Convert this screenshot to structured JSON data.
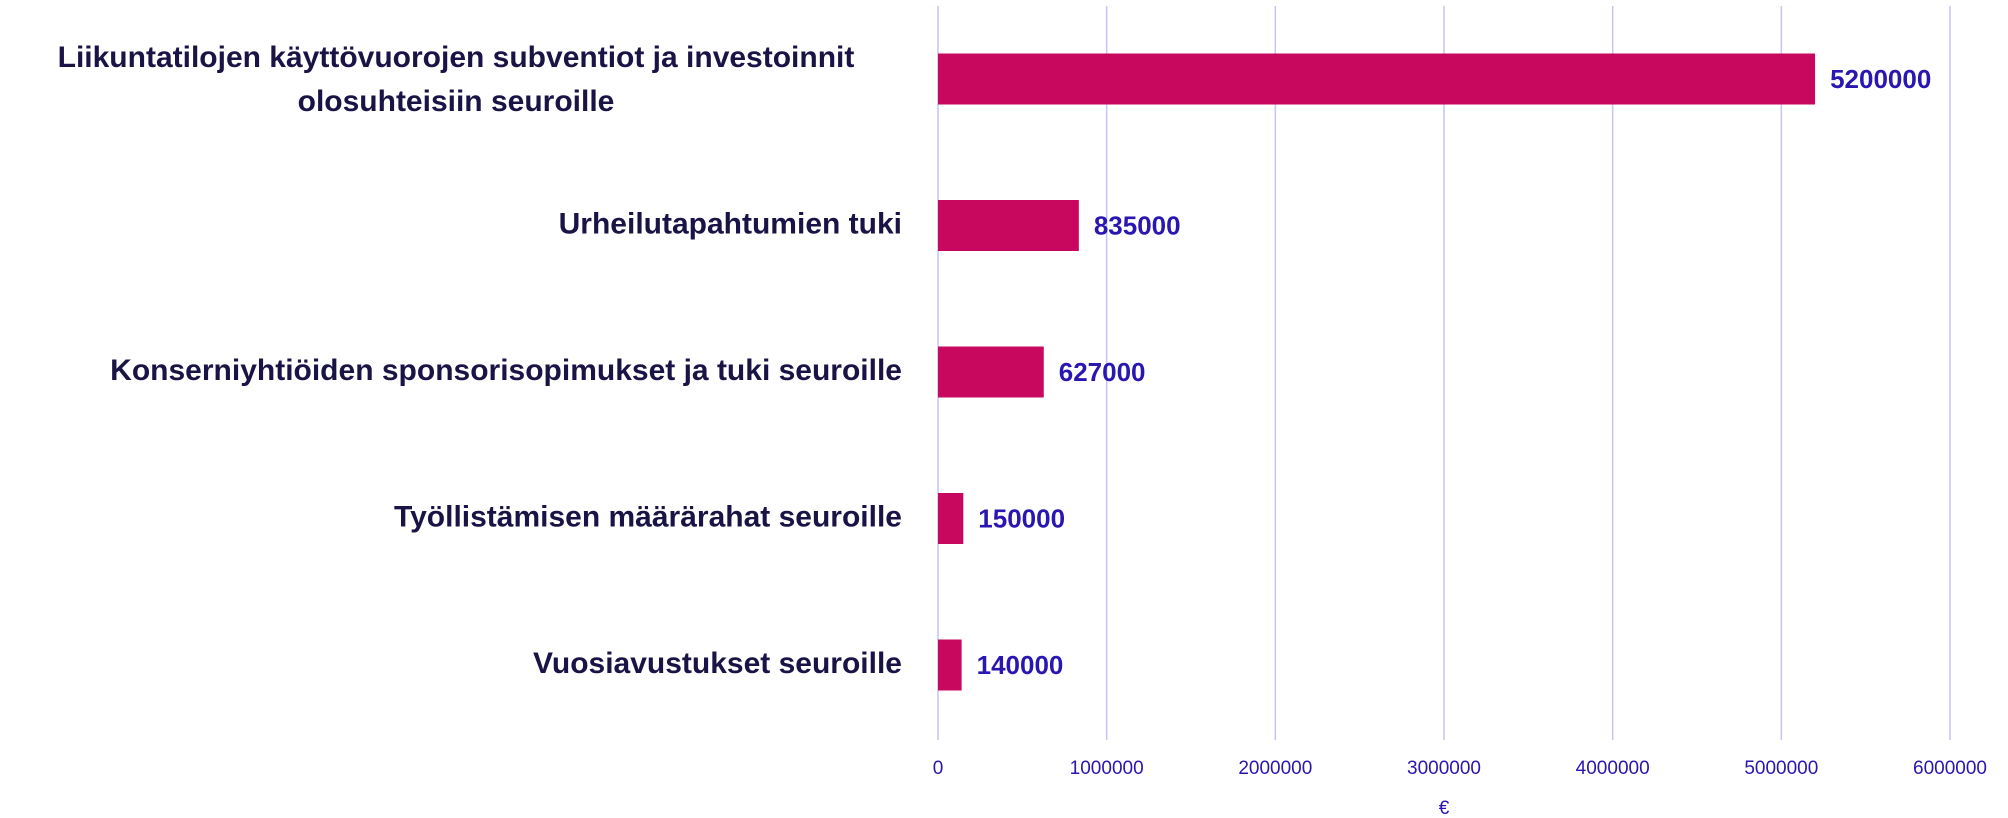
{
  "chart_data": {
    "type": "barh",
    "categories": [
      "Liikuntatilojen käyttövuorojen subventiot ja investoinnit\nolosuhteisiin seuroille",
      "Urheilutapahtumien tuki",
      "Konserniyhtiöiden sponsorisopimukset ja tuki seuroille",
      "Työllistämisen määrärahat seuroille",
      "Vuosiavustukset seuroille"
    ],
    "values": [
      5200000,
      835000,
      627000,
      150000,
      140000
    ],
    "color": "#c8075e",
    "xlabel": "€",
    "xlim": [
      0,
      6000000
    ],
    "xticks": [
      0,
      1000000,
      2000000,
      3000000,
      4000000,
      5000000,
      6000000
    ],
    "grid": true
  }
}
